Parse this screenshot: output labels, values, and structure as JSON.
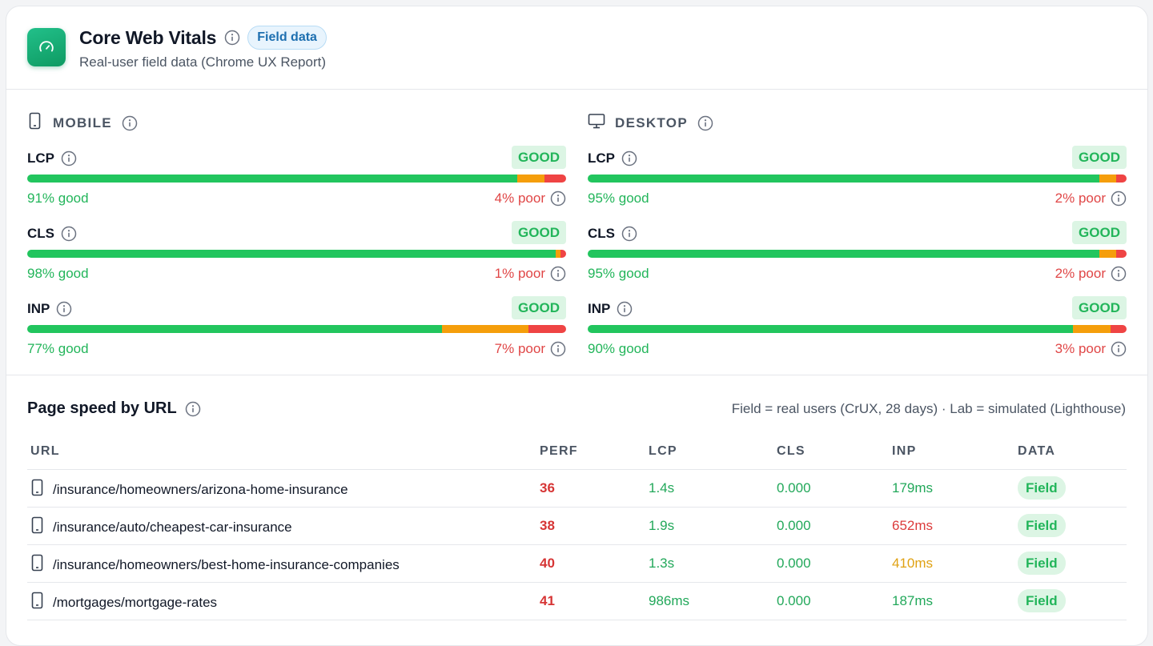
{
  "header": {
    "title": "Core Web Vitals",
    "badge": "Field data",
    "subtitle": "Real-user field data (Chrome UX Report)"
  },
  "colors": {
    "good": "#22c55e",
    "needs_improvement": "#f59e0b",
    "poor": "#ef4444",
    "accent_blue": "#1d6fb0"
  },
  "mobile": {
    "label": "MOBILE",
    "icon": "smartphone-icon",
    "metrics": [
      {
        "name": "LCP",
        "status": "GOOD",
        "good_pct": 91,
        "poor_pct": 4,
        "good_text": "91% good",
        "poor_text": "4% poor"
      },
      {
        "name": "CLS",
        "status": "GOOD",
        "good_pct": 98,
        "poor_pct": 1,
        "good_text": "98% good",
        "poor_text": "1% poor"
      },
      {
        "name": "INP",
        "status": "GOOD",
        "good_pct": 77,
        "poor_pct": 7,
        "good_text": "77% good",
        "poor_text": "7% poor"
      }
    ]
  },
  "desktop": {
    "label": "DESKTOP",
    "icon": "monitor-icon",
    "metrics": [
      {
        "name": "LCP",
        "status": "GOOD",
        "good_pct": 95,
        "poor_pct": 2,
        "good_text": "95% good",
        "poor_text": "2% poor"
      },
      {
        "name": "CLS",
        "status": "GOOD",
        "good_pct": 95,
        "poor_pct": 2,
        "good_text": "95% good",
        "poor_text": "2% poor"
      },
      {
        "name": "INP",
        "status": "GOOD",
        "good_pct": 90,
        "poor_pct": 3,
        "good_text": "90% good",
        "poor_text": "3% poor"
      }
    ]
  },
  "table": {
    "title": "Page speed by URL",
    "note": "Field = real users (CrUX, 28 days) · Lab = simulated (Lighthouse)",
    "columns": [
      "URL",
      "PERF",
      "LCP",
      "CLS",
      "INP",
      "DATA"
    ],
    "rows": [
      {
        "url": "/insurance/homeowners/arizona-home-insurance",
        "perf": "36",
        "lcp": "1.4s",
        "lcp_rating": "g",
        "cls": "0.000",
        "cls_rating": "g",
        "inp": "179ms",
        "inp_rating": "g",
        "data": "Field"
      },
      {
        "url": "/insurance/auto/cheapest-car-insurance",
        "perf": "38",
        "lcp": "1.9s",
        "lcp_rating": "g",
        "cls": "0.000",
        "cls_rating": "g",
        "inp": "652ms",
        "inp_rating": "r",
        "data": "Field"
      },
      {
        "url": "/insurance/homeowners/best-home-insurance-companies",
        "perf": "40",
        "lcp": "1.3s",
        "lcp_rating": "g",
        "cls": "0.000",
        "cls_rating": "g",
        "inp": "410ms",
        "inp_rating": "a",
        "data": "Field"
      },
      {
        "url": "/mortgages/mortgage-rates",
        "perf": "41",
        "lcp": "986ms",
        "lcp_rating": "g",
        "cls": "0.000",
        "cls_rating": "g",
        "inp": "187ms",
        "inp_rating": "g",
        "data": "Field"
      }
    ]
  }
}
